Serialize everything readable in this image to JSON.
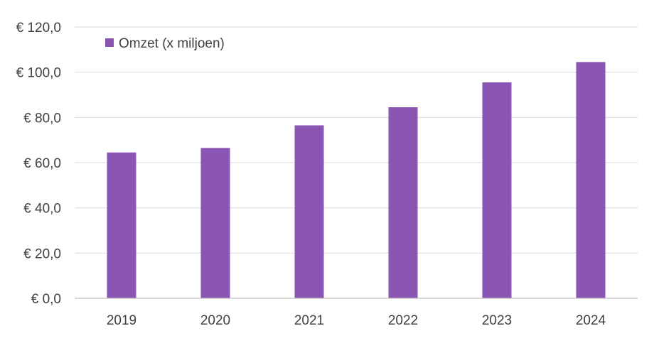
{
  "chart_data": {
    "type": "bar",
    "categories": [
      "2019",
      "2020",
      "2021",
      "2022",
      "2023",
      "2024"
    ],
    "series": [
      {
        "name": "Omzet (x miljoen)",
        "values": [
          64.5,
          66.5,
          76.5,
          84.5,
          95.5,
          104.5
        ],
        "color": "#8b55b3"
      }
    ],
    "yticks": [
      "€ 0,0",
      "€ 20,0",
      "€ 40,0",
      "€ 60,0",
      "€ 80,0",
      "€ 100,0",
      "€ 120,0"
    ],
    "ylim": [
      0,
      120
    ],
    "ystep": 20,
    "grid": true,
    "legend_position": "top-left"
  }
}
